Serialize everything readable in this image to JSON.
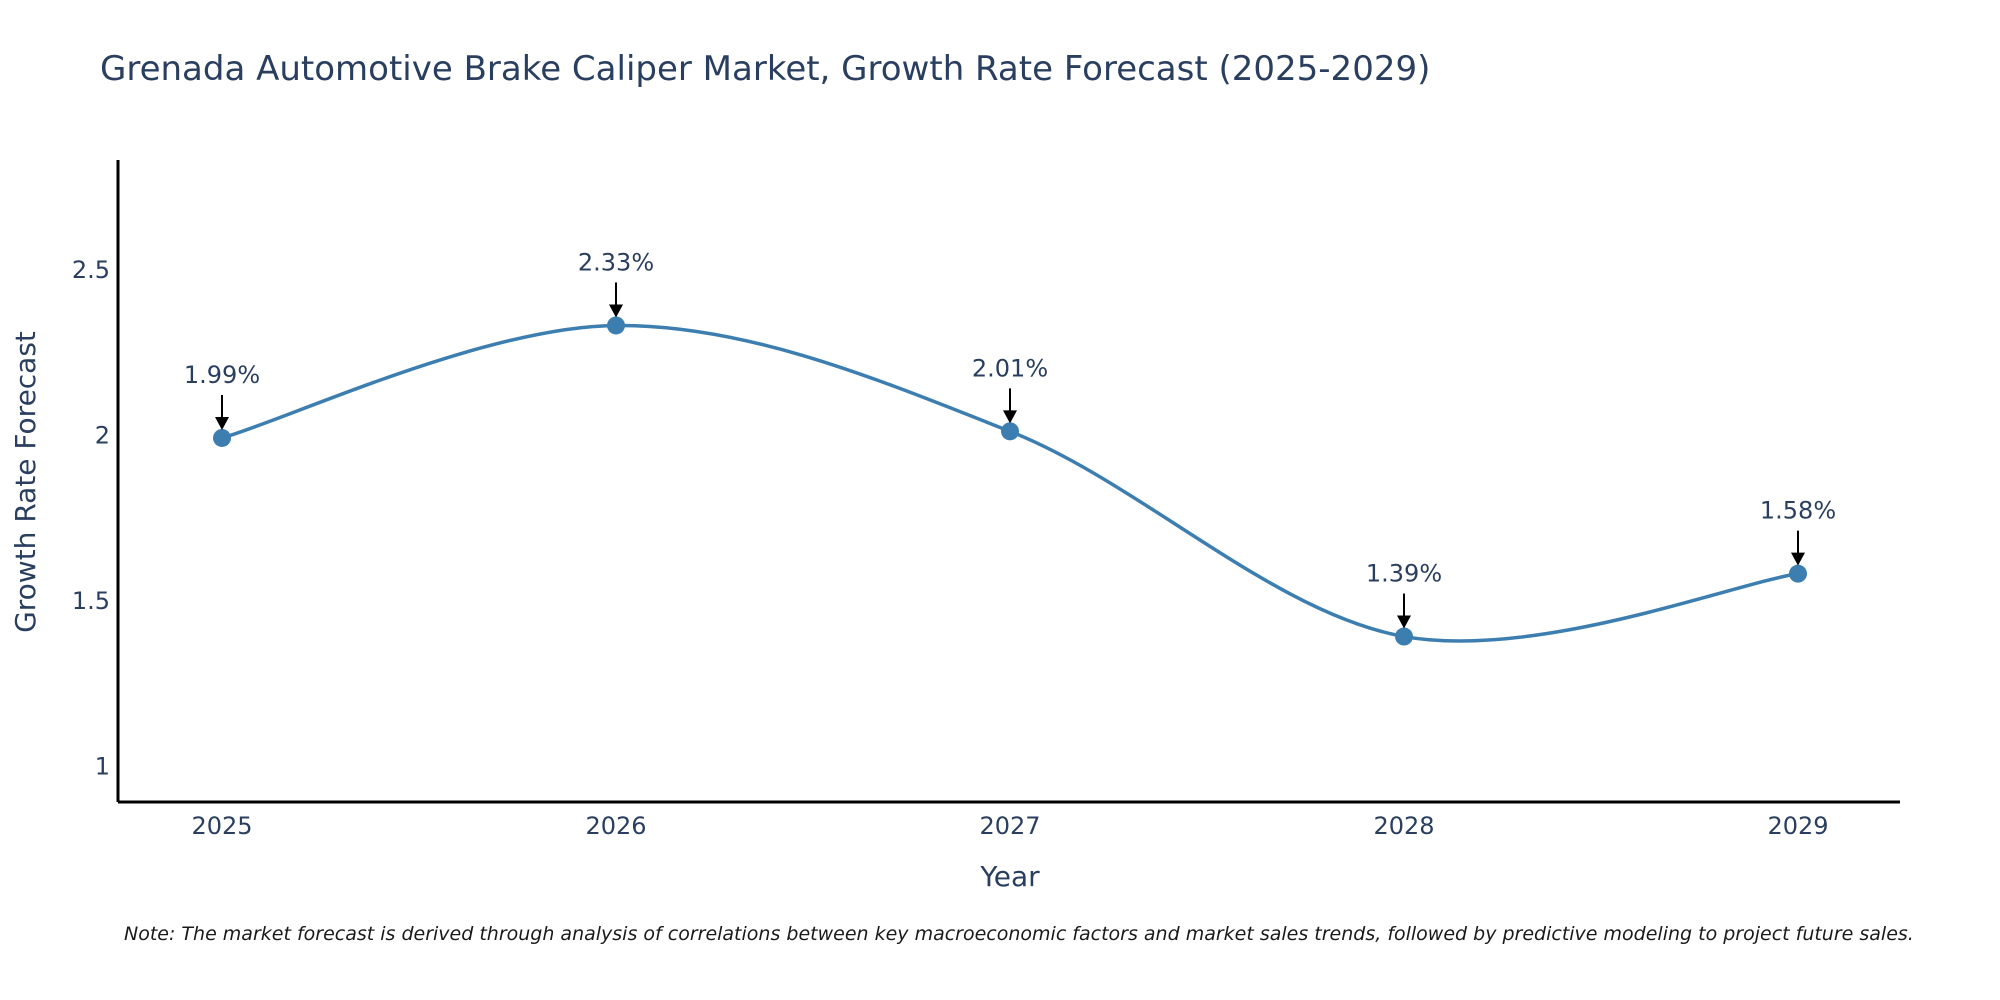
{
  "chart_data": {
    "type": "line",
    "title": "Grenada Automotive Brake Caliper Market, Growth Rate Forecast (2025-2029)",
    "xlabel": "Year",
    "ylabel": "Growth Rate Forecast",
    "categories": [
      "2025",
      "2026",
      "2027",
      "2028",
      "2029"
    ],
    "values": [
      1.99,
      2.33,
      2.01,
      1.39,
      1.58
    ],
    "data_labels": [
      "1.99%",
      "2.33%",
      "2.01%",
      "1.39%",
      "1.58%"
    ],
    "yticks": [
      1,
      1.5,
      2,
      2.5
    ],
    "ytick_labels": [
      "1",
      "1.5",
      "2",
      "2.5"
    ],
    "ylim": [
      0.89,
      2.83
    ],
    "grid": false,
    "line_color": "#3d7eb0",
    "marker_color": "#3d7eb0"
  },
  "note": "Note: The market forecast is derived through analysis of correlations between key macroeconomic factors and market sales trends, followed by predictive modeling to project future sales."
}
